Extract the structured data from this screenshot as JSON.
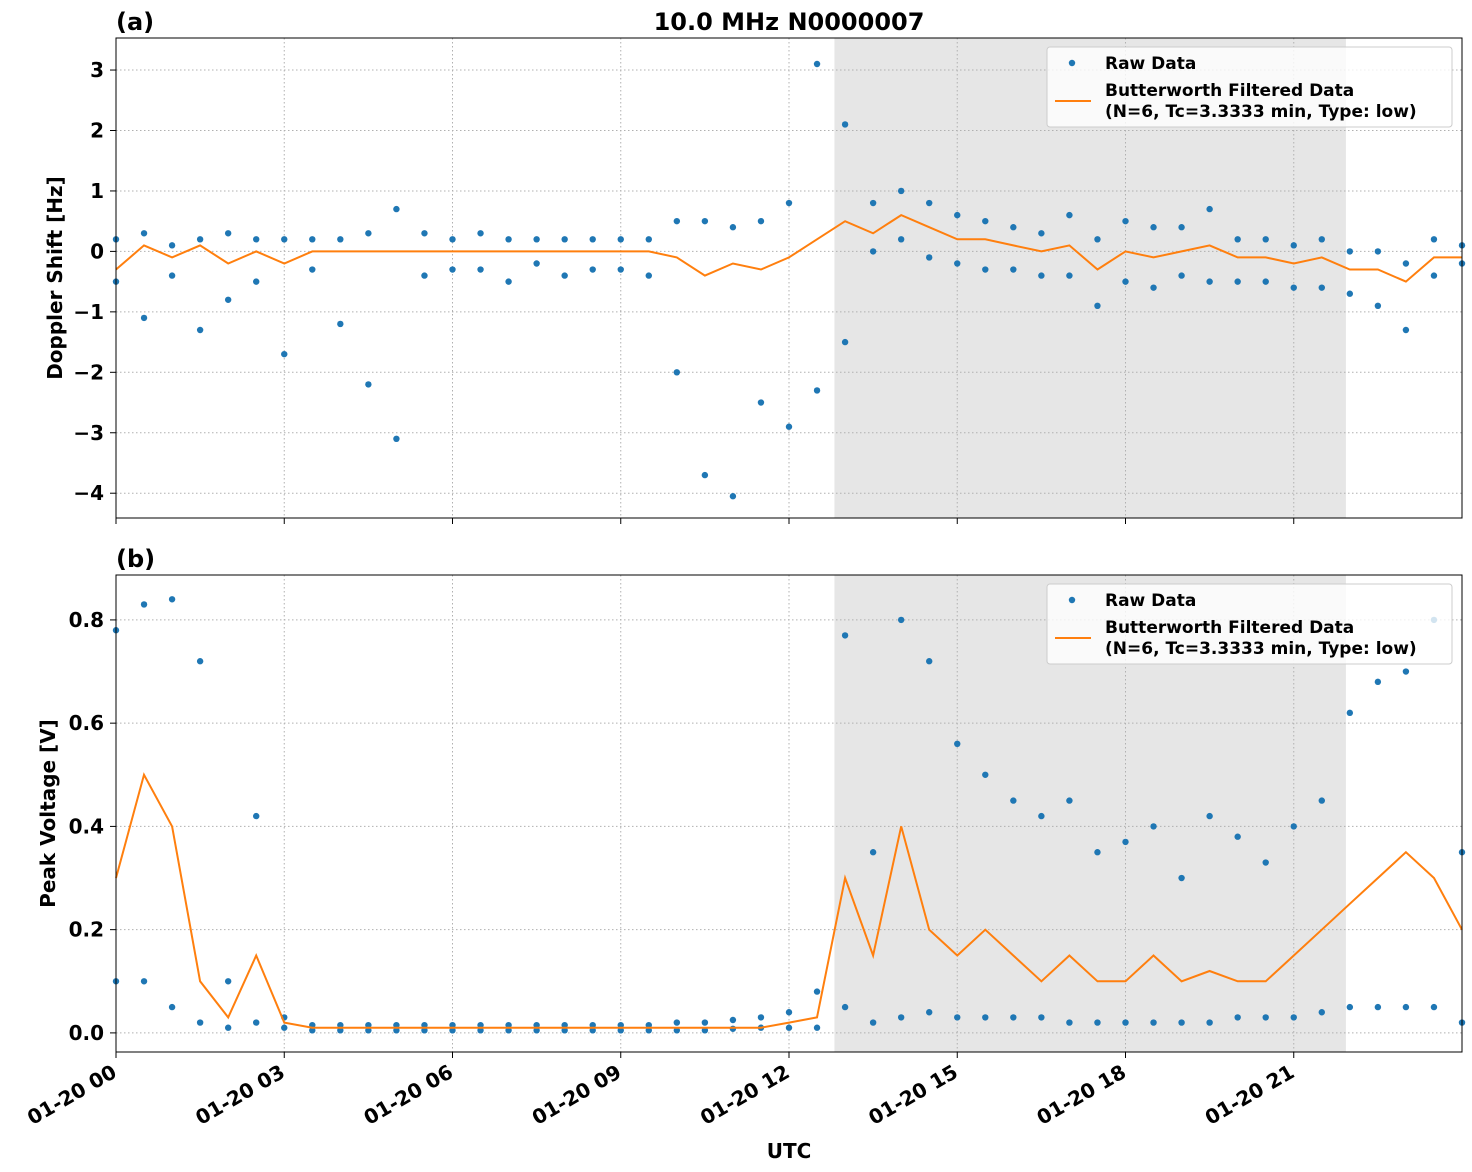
{
  "chart_data": [
    {
      "type": "line",
      "panel_label": "(a)",
      "title": "10.0 MHz N0000007",
      "ylabel": "Doppler Shift [Hz]",
      "xlim": [
        0,
        24
      ],
      "ylim": [
        -4.41,
        3.53
      ],
      "xticks": [
        0,
        3,
        6,
        9,
        12,
        15,
        18,
        21
      ],
      "yticks": [
        {
          "value": -4,
          "label": "−4"
        },
        {
          "value": -3,
          "label": "−3"
        },
        {
          "value": -2,
          "label": "−2"
        },
        {
          "value": -1,
          "label": "−1"
        },
        0,
        1,
        2,
        3
      ],
      "grid": true,
      "shaded_span": [
        12.81,
        21.93
      ],
      "legend": "upper right",
      "series": [
        {
          "name": "Raw Data",
          "kind": "scatter",
          "color": "#1f77b4",
          "x": [
            0,
            0,
            0.5,
            0.5,
            1,
            1,
            1.5,
            1.5,
            2,
            2,
            2.5,
            2.5,
            3,
            3,
            3.5,
            3.5,
            4,
            4,
            4.5,
            4.5,
            5,
            5,
            5.5,
            5.5,
            6,
            6,
            6.5,
            6.5,
            7,
            7,
            7.5,
            7.5,
            8,
            8,
            8.5,
            8.5,
            9,
            9,
            9.5,
            9.5,
            10,
            10,
            10.5,
            10.5,
            11,
            11,
            11.5,
            11.5,
            12,
            12,
            12.5,
            12.5,
            13,
            13,
            13.5,
            13.5,
            14,
            14,
            14.5,
            14.5,
            15,
            15,
            15.5,
            15.5,
            16,
            16,
            16.5,
            16.5,
            17,
            17,
            17.5,
            17.5,
            18,
            18,
            18.5,
            18.5,
            19,
            19,
            19.5,
            19.5,
            20,
            20,
            20.5,
            20.5,
            21,
            21,
            21.5,
            21.5,
            22,
            22,
            22.5,
            22.5,
            23,
            23,
            23.5,
            23.5,
            24,
            24
          ],
          "values": [
            0.2,
            -0.5,
            0.3,
            -1.1,
            0.1,
            -0.4,
            0.2,
            -1.3,
            0.3,
            -0.8,
            0.2,
            -0.5,
            0.2,
            -1.7,
            0.2,
            -0.3,
            0.2,
            -1.2,
            0.3,
            -2.2,
            0.7,
            -3.1,
            0.3,
            -0.4,
            0.2,
            -0.3,
            0.3,
            -0.3,
            0.2,
            -0.5,
            0.2,
            -0.2,
            0.2,
            -0.4,
            0.2,
            -0.3,
            0.2,
            -0.3,
            0.2,
            -0.4,
            0.5,
            -2.0,
            0.5,
            -3.7,
            0.4,
            -4.05,
            0.5,
            -2.5,
            0.8,
            -2.9,
            3.1,
            -2.3,
            2.1,
            -1.5,
            0.8,
            0.0,
            1.0,
            0.2,
            0.8,
            -0.1,
            0.6,
            -0.2,
            0.5,
            -0.3,
            0.4,
            -0.3,
            0.3,
            -0.4,
            0.6,
            -0.4,
            0.2,
            -0.9,
            0.5,
            -0.5,
            0.4,
            -0.6,
            0.4,
            -0.4,
            0.7,
            -0.5,
            0.2,
            -0.5,
            0.2,
            -0.5,
            0.1,
            -0.6,
            0.2,
            -0.6,
            0.0,
            -0.7,
            0.0,
            -0.9,
            -0.2,
            -1.3,
            0.2,
            -0.4,
            0.1,
            -0.2
          ]
        },
        {
          "name": "Butterworth Filtered Data",
          "name_line2": "(N=6, Tc=3.3333 min, Type: low)",
          "kind": "line",
          "color": "#ff7f0e",
          "x": [
            0,
            0.5,
            1,
            1.5,
            2,
            2.5,
            3,
            3.5,
            4,
            4.5,
            5,
            5.5,
            6,
            6.5,
            7,
            7.5,
            8,
            8.5,
            9,
            9.5,
            10,
            10.5,
            11,
            11.5,
            12,
            12.5,
            13,
            13.5,
            14,
            14.5,
            15,
            15.5,
            16,
            16.5,
            17,
            17.5,
            18,
            18.5,
            19,
            19.5,
            20,
            20.5,
            21,
            21.5,
            22,
            22.5,
            23,
            23.5,
            24
          ],
          "values": [
            -0.3,
            0.1,
            -0.1,
            0.1,
            -0.2,
            0.0,
            -0.2,
            0.0,
            0.0,
            0.0,
            0.0,
            0.0,
            0.0,
            0.0,
            0.0,
            0.0,
            0.0,
            0.0,
            0.0,
            0.0,
            -0.1,
            -0.4,
            -0.2,
            -0.3,
            -0.1,
            0.2,
            0.5,
            0.3,
            0.6,
            0.4,
            0.2,
            0.2,
            0.1,
            0.0,
            0.1,
            -0.3,
            0.0,
            -0.1,
            0.0,
            0.1,
            -0.1,
            -0.1,
            -0.2,
            -0.1,
            -0.3,
            -0.3,
            -0.5,
            -0.1,
            -0.1
          ]
        }
      ]
    },
    {
      "type": "line",
      "panel_label": "(b)",
      "ylabel": "Peak Voltage [V]",
      "xlabel": "UTC",
      "xlim": [
        0,
        24
      ],
      "ylim": [
        -0.037,
        0.887
      ],
      "xticks": [
        {
          "value": 0,
          "label": "01-20 00"
        },
        {
          "value": 3,
          "label": "01-20 03"
        },
        {
          "value": 6,
          "label": "01-20 06"
        },
        {
          "value": 9,
          "label": "01-20 09"
        },
        {
          "value": 12,
          "label": "01-20 12"
        },
        {
          "value": 15,
          "label": "01-20 15"
        },
        {
          "value": 18,
          "label": "01-20 18"
        },
        {
          "value": 21,
          "label": "01-20 21"
        }
      ],
      "yticks": [
        {
          "value": 0,
          "label": "0.0"
        },
        0.2,
        0.4,
        0.6,
        0.8
      ],
      "grid": true,
      "shaded_span": [
        12.81,
        21.93
      ],
      "legend": "upper right",
      "series": [
        {
          "name": "Raw Data",
          "kind": "scatter",
          "color": "#1f77b4",
          "x": [
            0,
            0,
            0.5,
            0.5,
            1,
            1,
            1.5,
            1.5,
            2,
            2,
            2.5,
            2.5,
            3,
            3,
            3.5,
            3.5,
            4,
            4,
            4.5,
            4.5,
            5,
            5,
            5.5,
            5.5,
            6,
            6,
            6.5,
            6.5,
            7,
            7,
            7.5,
            7.5,
            8,
            8,
            8.5,
            8.5,
            9,
            9,
            9.5,
            9.5,
            10,
            10,
            10.5,
            10.5,
            11,
            11,
            11.5,
            11.5,
            12,
            12,
            12.5,
            12.5,
            13,
            13,
            13.5,
            13.5,
            14,
            14,
            14.5,
            14.5,
            15,
            15,
            15.5,
            15.5,
            16,
            16,
            16.5,
            16.5,
            17,
            17,
            17.5,
            17.5,
            18,
            18,
            18.5,
            18.5,
            19,
            19,
            19.5,
            19.5,
            20,
            20,
            20.5,
            20.5,
            21,
            21,
            21.5,
            21.5,
            22,
            22,
            22.5,
            22.5,
            23,
            23,
            23.5,
            23.5,
            24,
            24
          ],
          "values": [
            0.78,
            0.1,
            0.83,
            0.1,
            0.84,
            0.05,
            0.72,
            0.02,
            0.1,
            0.01,
            0.42,
            0.02,
            0.03,
            0.01,
            0.015,
            0.005,
            0.015,
            0.005,
            0.015,
            0.005,
            0.015,
            0.005,
            0.015,
            0.005,
            0.015,
            0.005,
            0.015,
            0.005,
            0.015,
            0.005,
            0.015,
            0.005,
            0.015,
            0.005,
            0.015,
            0.005,
            0.015,
            0.005,
            0.015,
            0.005,
            0.02,
            0.005,
            0.02,
            0.005,
            0.025,
            0.008,
            0.03,
            0.01,
            0.04,
            0.01,
            0.08,
            0.01,
            0.77,
            0.05,
            0.35,
            0.02,
            0.8,
            0.03,
            0.72,
            0.04,
            0.56,
            0.03,
            0.5,
            0.03,
            0.45,
            0.03,
            0.42,
            0.03,
            0.45,
            0.02,
            0.35,
            0.02,
            0.37,
            0.02,
            0.4,
            0.02,
            0.3,
            0.02,
            0.42,
            0.02,
            0.38,
            0.03,
            0.33,
            0.03,
            0.4,
            0.03,
            0.45,
            0.04,
            0.62,
            0.05,
            0.68,
            0.05,
            0.7,
            0.05,
            0.8,
            0.05,
            0.35,
            0.02
          ]
        },
        {
          "name": "Butterworth Filtered Data",
          "name_line2": "(N=6, Tc=3.3333 min, Type: low)",
          "kind": "line",
          "color": "#ff7f0e",
          "x": [
            0,
            0.5,
            1,
            1.5,
            2,
            2.5,
            3,
            3.5,
            4,
            4.5,
            5,
            5.5,
            6,
            6.5,
            7,
            7.5,
            8,
            8.5,
            9,
            9.5,
            10,
            10.5,
            11,
            11.5,
            12,
            12.5,
            13,
            13.5,
            14,
            14.5,
            15,
            15.5,
            16,
            16.5,
            17,
            17.5,
            18,
            18.5,
            19,
            19.5,
            20,
            20.5,
            21,
            21.5,
            22,
            22.5,
            23,
            23.5,
            24
          ],
          "values": [
            0.3,
            0.5,
            0.4,
            0.1,
            0.03,
            0.15,
            0.02,
            0.01,
            0.01,
            0.01,
            0.01,
            0.01,
            0.01,
            0.01,
            0.01,
            0.01,
            0.01,
            0.01,
            0.01,
            0.01,
            0.01,
            0.01,
            0.01,
            0.01,
            0.02,
            0.03,
            0.3,
            0.15,
            0.4,
            0.2,
            0.15,
            0.2,
            0.15,
            0.1,
            0.15,
            0.1,
            0.1,
            0.15,
            0.1,
            0.12,
            0.1,
            0.1,
            0.15,
            0.2,
            0.25,
            0.3,
            0.35,
            0.3,
            0.2
          ]
        }
      ]
    }
  ]
}
